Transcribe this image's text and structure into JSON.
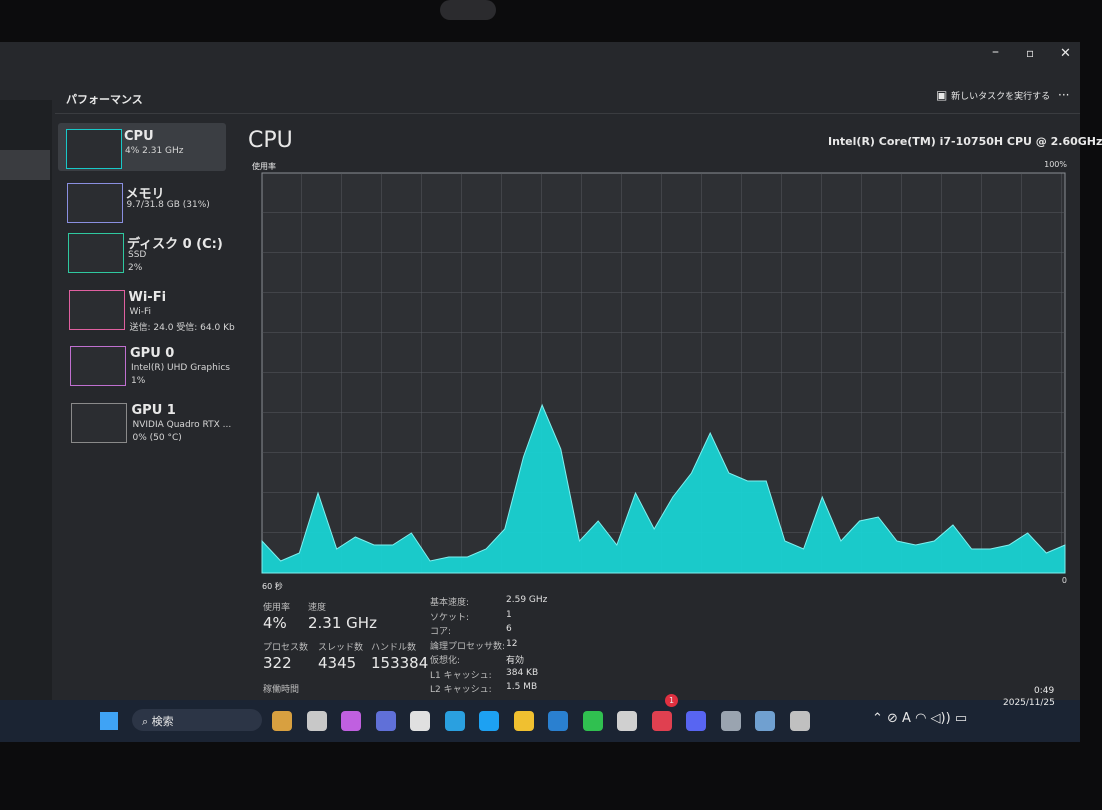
{
  "window": {
    "title": "パフォーマンス",
    "new_task": "新しいタスクを実行する"
  },
  "sidebar": [
    {
      "name": "CPU",
      "lines": [
        "4% 2.31 GHz"
      ]
    },
    {
      "name": "メモリ",
      "lines": [
        "9.7/31.8 GB (31%)"
      ]
    },
    {
      "name": "ディスク 0 (C:)",
      "lines": [
        "SSD",
        "2%"
      ]
    },
    {
      "name": "Wi-Fi",
      "lines": [
        "Wi-Fi",
        "送信: 24.0 受信: 64.0 Kb"
      ]
    },
    {
      "name": "GPU 0",
      "lines": [
        "Intel(R) UHD Graphics",
        "1%"
      ]
    },
    {
      "name": "GPU 1",
      "lines": [
        "NVIDIA Quadro RTX ...",
        "0% (50 °C)"
      ]
    }
  ],
  "chart_data": {
    "type": "area",
    "title": "CPU",
    "subtitle": "Intel(R) Core(TM) i7-10750H CPU @ 2.60GHz",
    "y_label": "使用率",
    "x_label": "60 秒",
    "color": "#19d3d3",
    "ylim": [
      0,
      100
    ],
    "yticks": [
      0,
      {
        "value": 100,
        "label": "100%"
      }
    ],
    "values": [
      8,
      3,
      5,
      20,
      6,
      9,
      7,
      7,
      10,
      3,
      4,
      4,
      6,
      11,
      29,
      42,
      31,
      8,
      13,
      7,
      20,
      11,
      19,
      25,
      35,
      25,
      23,
      23,
      8,
      6,
      19,
      8,
      13,
      14,
      8,
      7,
      8,
      12,
      6,
      6,
      7,
      10,
      5,
      7
    ]
  },
  "stats_main": [
    {
      "label": "使用率",
      "value": "4%"
    },
    {
      "label": "速度",
      "value": "2.31 GHz"
    },
    {
      "label": "プロセス数",
      "value": "322"
    },
    {
      "label": "スレッド数",
      "value": "4345"
    },
    {
      "label": "ハンドル数",
      "value": "153384"
    },
    {
      "label": "稼働時間"
    }
  ],
  "stats_side": [
    {
      "label": "基本速度:",
      "value": "2.59 GHz"
    },
    {
      "label": "ソケット:",
      "value": "1"
    },
    {
      "label": "コア:",
      "value": "6"
    },
    {
      "label": "論理プロセッサ数:",
      "value": "12"
    },
    {
      "label": "仮想化:",
      "value": "有効"
    },
    {
      "label": "L1 キャッシュ:",
      "value": "384 KB"
    },
    {
      "label": "L2 キャッシュ:",
      "value": "1.5 MB"
    }
  ],
  "taskbar": {
    "search": "検索",
    "time": "0:49",
    "date": "2025/11/25",
    "badge": "1"
  }
}
